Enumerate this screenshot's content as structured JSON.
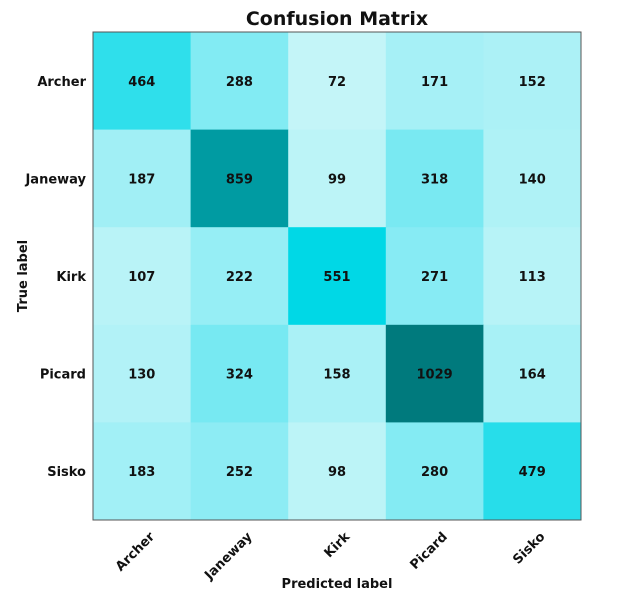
{
  "chart_data": {
    "type": "heatmap",
    "title": "Confusion Matrix",
    "xlabel": "Predicted label",
    "ylabel": "True label",
    "x_categories": [
      "Archer",
      "Janeway",
      "Kirk",
      "Picard",
      "Sisko"
    ],
    "y_categories": [
      "Archer",
      "Janeway",
      "Kirk",
      "Picard",
      "Sisko"
    ],
    "values": [
      [
        464,
        288,
        72,
        171,
        152
      ],
      [
        187,
        859,
        99,
        318,
        140
      ],
      [
        107,
        222,
        551,
        271,
        113
      ],
      [
        130,
        324,
        158,
        1029,
        164
      ],
      [
        183,
        252,
        98,
        280,
        479
      ]
    ],
    "colors": {
      "low": "#c4f5f8",
      "mid": "#72e8f2",
      "high": "#00d8e6",
      "max": "#007a7d"
    },
    "grid": false,
    "legend": "none"
  }
}
